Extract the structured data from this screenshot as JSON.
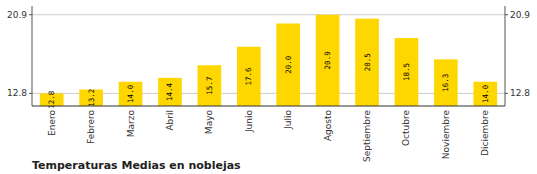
{
  "chart_data": {
    "type": "bar",
    "title": "Temperaturas Medias en noblejas",
    "categories": [
      "Enero",
      "Febrero",
      "Marzo",
      "Abril",
      "Mayo",
      "Junio",
      "Julio",
      "Agosto",
      "Septiembre",
      "Octubre",
      "Noviembre",
      "Diciembre"
    ],
    "values": [
      12.8,
      13.2,
      14.0,
      14.4,
      15.7,
      17.6,
      20.0,
      20.9,
      20.5,
      18.5,
      16.3,
      14.0
    ],
    "value_labels": [
      "12.8",
      "13.2",
      "14.0",
      "14.4",
      "15.7",
      "17.6",
      "20.0",
      "20.9",
      "20.5",
      "18.5",
      "16.3",
      "14.0"
    ],
    "data_labels": true,
    "color": "#FFD700",
    "ylim": [
      11.5,
      21.8
    ],
    "yticks": [
      12.8,
      20.9
    ],
    "y2lim": [
      11.5,
      21.8
    ],
    "y2ticks": [
      12.8,
      20.9
    ],
    "grid": true
  }
}
